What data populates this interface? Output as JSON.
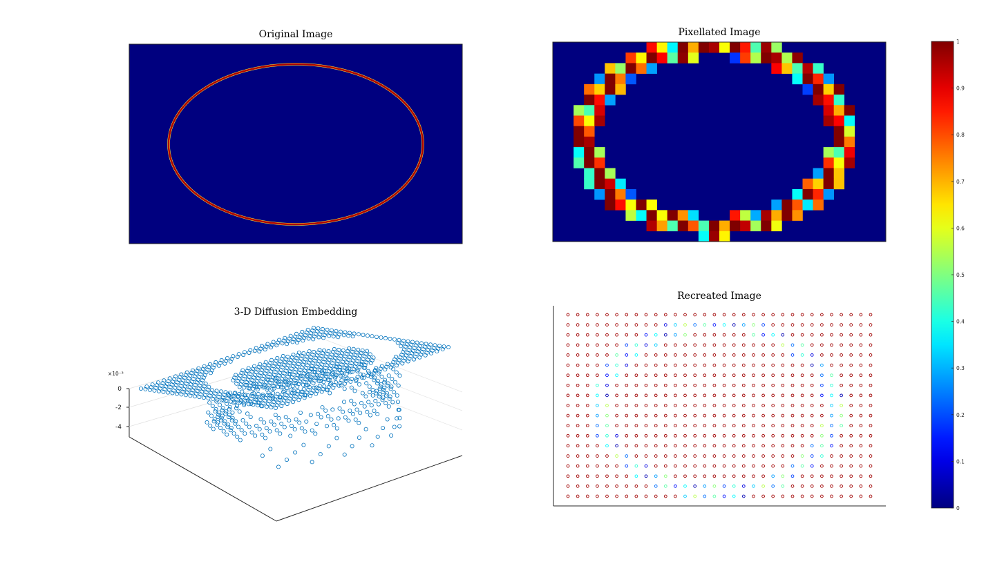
{
  "colors": {
    "colormap": "jet",
    "panel_bg": "#00007f",
    "embedding_marker": "#0072bd",
    "axis": "#262626",
    "grid": "#e0e0e0"
  },
  "chart_data": [
    {
      "type": "heatmap",
      "title": "Original Image",
      "content": "thin ellipse ring, value 1 on ring, 0 elsewhere",
      "ellipse": {
        "center": [
          0.5,
          0.5
        ],
        "semi_axes": [
          0.38,
          0.4
        ]
      },
      "clim": [
        0,
        1
      ]
    },
    {
      "type": "heatmap",
      "title": "Pixellated Image",
      "grid": [
        32,
        19
      ],
      "content": "coarse pixellation of the ellipse ring, values 0 to 1",
      "clim": [
        0,
        1
      ]
    },
    {
      "type": "scatter",
      "title": "3-D Diffusion Embedding",
      "projection": "3d",
      "marker": "open circle",
      "z_exponent_label": "×10⁻³",
      "z_ticks": [
        "0",
        "-2",
        "-4"
      ],
      "zlim": [
        -5,
        0
      ]
    },
    {
      "type": "scatter",
      "title": "Recreated Image",
      "grid": [
        32,
        19
      ],
      "marker": "open circle",
      "content": "points colored by value: ring points 0.05 to 0.6, interior and exterior 1",
      "clim": [
        0,
        1
      ]
    },
    {
      "type": "colorbar",
      "colormap": "jet",
      "range": [
        0,
        1
      ],
      "ticks": [
        "0",
        "0.1",
        "0.2",
        "0.3",
        "0.4",
        "0.5",
        "0.6",
        "0.7",
        "0.8",
        "0.9",
        "1"
      ]
    }
  ]
}
